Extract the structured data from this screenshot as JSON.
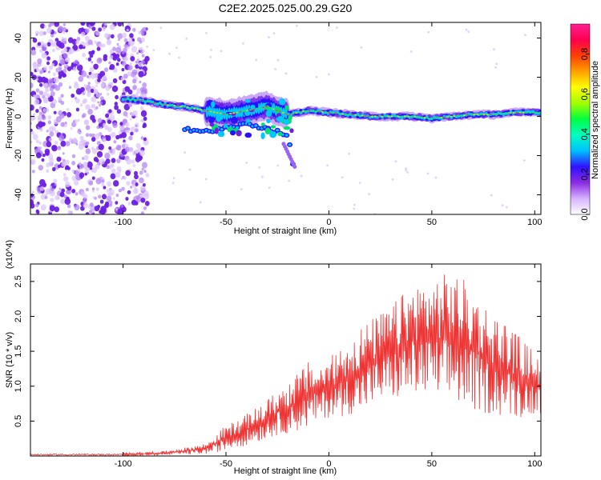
{
  "title": "C2E2.2025.025.00.29.G20",
  "chart_data": [
    {
      "type": "heatmap",
      "name": "spectrogram",
      "xlabel": "Height of straight line (km)",
      "ylabel": "Frequency (Hz)",
      "xlim": [
        -145,
        103
      ],
      "ylim": [
        -50,
        48
      ],
      "x_ticks": [
        -100,
        -50,
        0,
        50,
        100
      ],
      "y_ticks": [
        -40,
        -20,
        0,
        20,
        40
      ],
      "colorbar": {
        "label": "Normalized spectral amplitude",
        "range": [
          0,
          0.95
        ],
        "ticks": [
          "0.0",
          "0.2",
          "0.4",
          "0.6",
          "0.8"
        ],
        "colors": [
          "#ffffff",
          "#a040ff",
          "#2000ff",
          "#00ccff",
          "#00ff60",
          "#ffff00",
          "#ff6000",
          "#ff0080"
        ]
      },
      "features": {
        "noise_region_x": [
          -145,
          -100
        ],
        "signal_start_x": -100,
        "signal_start_freq": 9,
        "signal_track": [
          [
            -100,
            9
          ],
          [
            -90,
            8
          ],
          [
            -80,
            6
          ],
          [
            -70,
            5
          ],
          [
            -60,
            3
          ],
          [
            -50,
            1
          ],
          [
            -40,
            3
          ],
          [
            -30,
            5
          ],
          [
            -20,
            1
          ],
          [
            -15,
            2
          ],
          [
            -10,
            3
          ],
          [
            0,
            2
          ],
          [
            10,
            1
          ],
          [
            20,
            0
          ],
          [
            30,
            0
          ],
          [
            40,
            0
          ],
          [
            50,
            -1
          ],
          [
            60,
            0
          ],
          [
            70,
            1
          ],
          [
            80,
            1
          ],
          [
            90,
            2
          ],
          [
            100,
            2
          ]
        ],
        "lower_branch": [
          [
            -70,
            -6
          ],
          [
            -60,
            -8
          ],
          [
            -50,
            -6
          ],
          [
            -40,
            -4
          ],
          [
            -30,
            -6
          ],
          [
            -20,
            -10
          ],
          [
            -17,
            -26
          ]
        ]
      }
    },
    {
      "type": "line",
      "name": "snr",
      "xlabel": "Height of straight line (km)",
      "ylabel": "SNR (10 * v/v)",
      "multiplier": "(x10^4)",
      "xlim": [
        -145,
        103
      ],
      "ylim": [
        0,
        2.75
      ],
      "x_ticks": [
        -100,
        -50,
        0,
        50,
        100
      ],
      "y_ticks": [
        0.5,
        1.0,
        1.5,
        2.0,
        2.5
      ],
      "color": "#ee3333",
      "envelope": {
        "x": [
          -145,
          -100,
          -80,
          -70,
          -60,
          -55,
          -50,
          -45,
          -40,
          -35,
          -30,
          -25,
          -20,
          -15,
          -10,
          -5,
          0,
          5,
          10,
          15,
          20,
          25,
          30,
          35,
          40,
          45,
          50,
          55,
          60,
          65,
          70,
          75,
          80,
          85,
          90,
          95,
          100,
          103
        ],
        "low": [
          0.0,
          0.0,
          0.01,
          0.02,
          0.03,
          0.05,
          0.08,
          0.12,
          0.15,
          0.2,
          0.25,
          0.3,
          0.32,
          0.35,
          0.4,
          0.5,
          0.55,
          0.55,
          0.6,
          0.6,
          0.7,
          0.75,
          0.8,
          0.8,
          0.85,
          0.85,
          0.8,
          0.75,
          0.75,
          0.7,
          0.65,
          0.6,
          0.6,
          0.55,
          0.55,
          0.55,
          0.6,
          0.6
        ],
        "high": [
          0.03,
          0.05,
          0.07,
          0.12,
          0.18,
          0.3,
          0.45,
          0.5,
          0.6,
          0.7,
          0.8,
          0.95,
          1.05,
          1.2,
          1.35,
          1.3,
          1.4,
          1.55,
          1.7,
          1.85,
          1.95,
          2.05,
          2.15,
          2.3,
          2.45,
          2.5,
          2.55,
          2.6,
          2.65,
          2.55,
          2.4,
          2.2,
          2.05,
          1.95,
          1.8,
          1.65,
          1.5,
          1.4
        ]
      }
    }
  ]
}
